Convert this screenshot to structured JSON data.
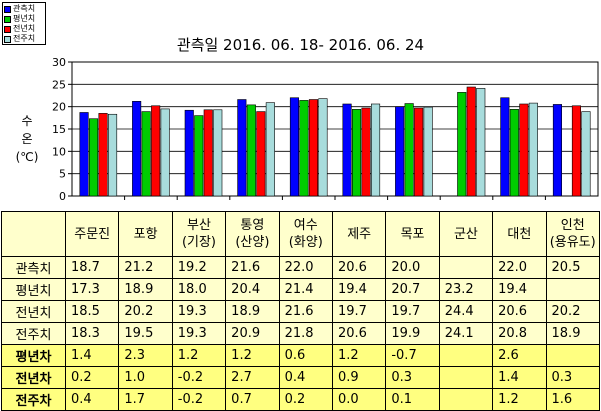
{
  "chart_data": {
    "type": "bar",
    "title": "관측일 2016. 06. 18- 2016. 06. 24",
    "ylabel": [
      "수",
      "온",
      "(℃)"
    ],
    "ylim": [
      0,
      30
    ],
    "yticks": [
      0,
      5,
      10,
      15,
      20,
      25,
      30
    ],
    "grid": true,
    "legend_position": "top-left",
    "categories": [
      "주문진",
      "포항",
      "부산\n(기장)",
      "통영\n(산양)",
      "여수\n(화양)",
      "제주",
      "목포",
      "군산",
      "대천",
      "인천\n(용유도)"
    ],
    "series": [
      {
        "name": "관측치",
        "color": "#0000ff",
        "values": [
          18.7,
          21.2,
          19.2,
          21.6,
          22.0,
          20.6,
          20.0,
          null,
          22.0,
          20.5
        ]
      },
      {
        "name": "평년치",
        "color": "#00cc00",
        "values": [
          17.3,
          18.9,
          18.0,
          20.4,
          21.4,
          19.4,
          20.7,
          23.2,
          19.4,
          null
        ]
      },
      {
        "name": "전년치",
        "color": "#ff0000",
        "values": [
          18.5,
          20.2,
          19.3,
          18.9,
          21.6,
          19.7,
          19.7,
          24.4,
          20.6,
          20.2
        ]
      },
      {
        "name": "전주치",
        "color": "#a8dcdc",
        "values": [
          18.3,
          19.5,
          19.3,
          20.9,
          21.8,
          20.6,
          19.9,
          24.1,
          20.8,
          18.9
        ]
      }
    ]
  },
  "table": {
    "columns": [
      "주문진",
      "포항",
      "부산\n(기장)",
      "통영\n(산양)",
      "여수\n(화양)",
      "제주",
      "목포",
      "군산",
      "대천",
      "인천\n(용유도)"
    ],
    "rows": [
      {
        "label": "관측치",
        "diff": false,
        "cells": [
          "18.7",
          "21.2",
          "19.2",
          "21.6",
          "22.0",
          "20.6",
          "20.0",
          "",
          "22.0",
          "20.5"
        ]
      },
      {
        "label": "평년치",
        "diff": false,
        "cells": [
          "17.3",
          "18.9",
          "18.0",
          "20.4",
          "21.4",
          "19.4",
          "20.7",
          "23.2",
          "19.4",
          ""
        ]
      },
      {
        "label": "전년치",
        "diff": false,
        "cells": [
          "18.5",
          "20.2",
          "19.3",
          "18.9",
          "21.6",
          "19.7",
          "19.7",
          "24.4",
          "20.6",
          "20.2"
        ]
      },
      {
        "label": "전주치",
        "diff": false,
        "cells": [
          "18.3",
          "19.5",
          "19.3",
          "20.9",
          "21.8",
          "20.6",
          "19.9",
          "24.1",
          "20.8",
          "18.9"
        ]
      },
      {
        "label": "평년차",
        "diff": true,
        "cells": [
          "1.4",
          "2.3",
          "1.2",
          "1.2",
          "0.6",
          "1.2",
          "-0.7",
          "",
          "2.6",
          ""
        ]
      },
      {
        "label": "전년차",
        "diff": true,
        "cells": [
          "0.2",
          "1.0",
          "-0.2",
          "2.7",
          "0.4",
          "0.9",
          "0.3",
          "",
          "1.4",
          "0.3"
        ]
      },
      {
        "label": "전주차",
        "diff": true,
        "cells": [
          "0.4",
          "1.7",
          "-0.2",
          "0.7",
          "0.2",
          "0.0",
          "0.1",
          "",
          "1.2",
          "1.6"
        ]
      }
    ]
  }
}
